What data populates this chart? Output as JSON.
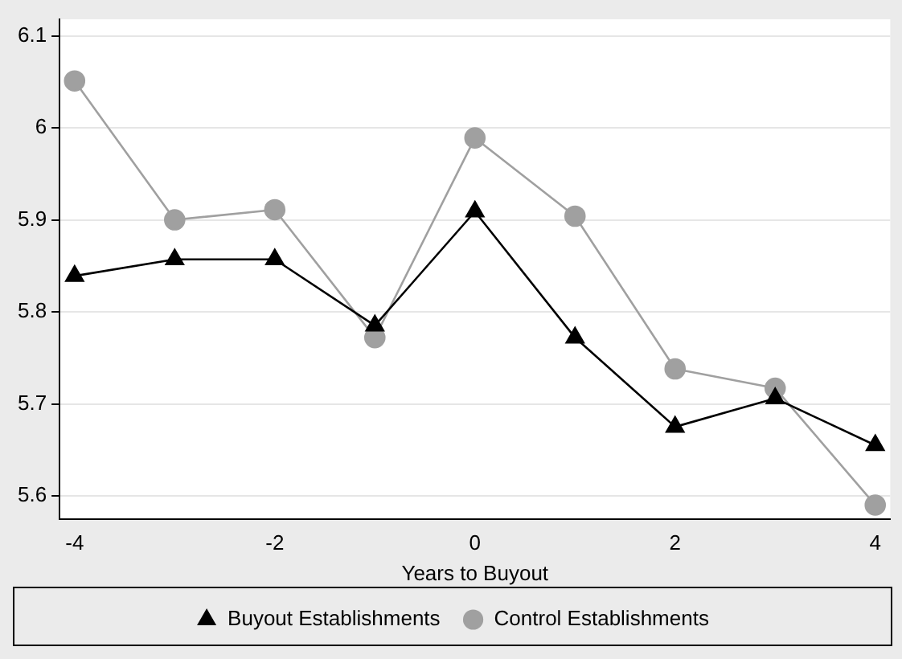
{
  "chart_data": {
    "type": "line",
    "xlabel": "Years to Buyout",
    "x": [
      -4,
      -3,
      -2,
      -1,
      0,
      1,
      2,
      3,
      4
    ],
    "series": [
      {
        "name": "Buyout Establishments",
        "color": "#000000",
        "marker": "triangle",
        "values": [
          5.839,
          5.857,
          5.857,
          5.785,
          5.909,
          5.772,
          5.675,
          5.706,
          5.655
        ]
      },
      {
        "name": "Control Establishments",
        "color": "#a0a0a0",
        "marker": "circle",
        "values": [
          6.051,
          5.9,
          5.911,
          5.772,
          5.989,
          5.904,
          5.738,
          5.717,
          5.59
        ]
      }
    ],
    "xlim": [
      -4.15,
      4.15
    ],
    "xticks": [
      -4,
      -2,
      0,
      2,
      4
    ],
    "ylim": [
      5.575,
      6.118
    ],
    "yticks": [
      5.6,
      5.7,
      5.8,
      5.9,
      6,
      6.1
    ],
    "grid": "y",
    "legend": "bottom"
  }
}
